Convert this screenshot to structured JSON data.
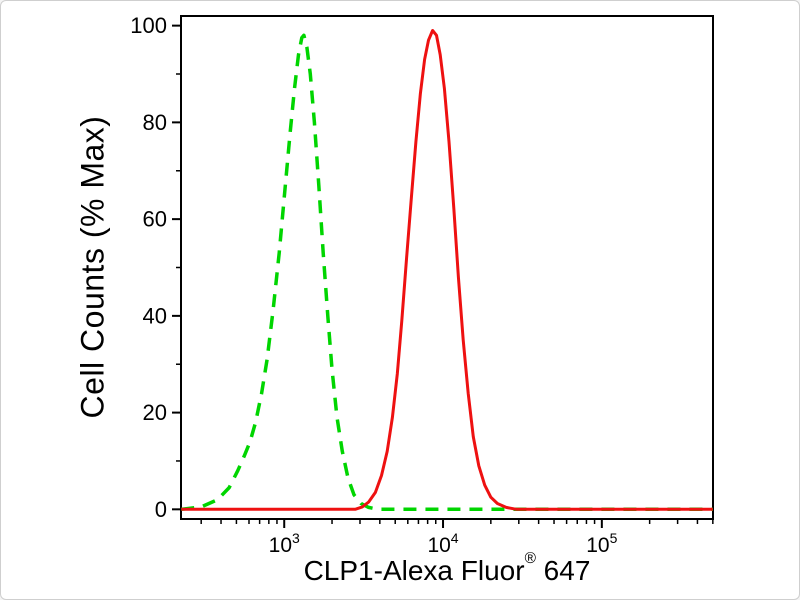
{
  "chart_data": {
    "type": "line",
    "title": "",
    "ylabel": "Cell Counts (% Max)",
    "xlabel_parts": {
      "prefix": "CLP1-Alexa Fluor",
      "registered": "®",
      "suffix": " 647"
    },
    "x_scale": "log10",
    "x_domain_log": [
      2.35,
      5.7
    ],
    "y_domain": [
      -2,
      102
    ],
    "y_ticks": [
      0,
      20,
      40,
      60,
      80,
      100
    ],
    "y_minor_step": 10,
    "x_major_tick_exponents": [
      3,
      4,
      5
    ],
    "grid": false,
    "legend": "none",
    "axis_color": "#000000",
    "series": [
      {
        "key": "control-curve",
        "name": "negative control (dashed green)",
        "color": "#00d500",
        "dash": [
          13,
          9
        ],
        "width": 3.5,
        "peak": {
          "x": 1300,
          "y": 98
        },
        "points": [
          [
            225,
            0
          ],
          [
            300,
            0.5
          ],
          [
            380,
            2
          ],
          [
            450,
            4.5
          ],
          [
            510,
            8
          ],
          [
            560,
            11
          ],
          [
            610,
            14
          ],
          [
            660,
            18
          ],
          [
            720,
            24
          ],
          [
            780,
            31
          ],
          [
            850,
            41
          ],
          [
            930,
            53
          ],
          [
            1010,
            66
          ],
          [
            1090,
            78
          ],
          [
            1160,
            87
          ],
          [
            1230,
            94
          ],
          [
            1290,
            97.5
          ],
          [
            1330,
            98
          ],
          [
            1390,
            95.5
          ],
          [
            1460,
            90
          ],
          [
            1550,
            80
          ],
          [
            1650,
            67
          ],
          [
            1760,
            53
          ],
          [
            1880,
            40
          ],
          [
            2000,
            29
          ],
          [
            2150,
            19
          ],
          [
            2320,
            12
          ],
          [
            2520,
            6.5
          ],
          [
            2750,
            3
          ],
          [
            3050,
            1.2
          ],
          [
            3400,
            0.4
          ],
          [
            3900,
            0
          ],
          [
            500000,
            0
          ]
        ]
      },
      {
        "key": "stained-curve",
        "name": "CLP1-Alexa Fluor 647 stained (solid red)",
        "color": "#ee1111",
        "dash": null,
        "width": 3,
        "peak": {
          "x": 8600,
          "y": 99
        },
        "points": [
          [
            225,
            0
          ],
          [
            2800,
            0
          ],
          [
            3100,
            0.5
          ],
          [
            3400,
            1.5
          ],
          [
            3750,
            3.5
          ],
          [
            4100,
            7
          ],
          [
            4450,
            12
          ],
          [
            4800,
            19
          ],
          [
            5150,
            28
          ],
          [
            5500,
            39
          ],
          [
            5900,
            52
          ],
          [
            6300,
            64
          ],
          [
            6750,
            76
          ],
          [
            7200,
            86
          ],
          [
            7650,
            93
          ],
          [
            8100,
            97
          ],
          [
            8600,
            99
          ],
          [
            9100,
            98
          ],
          [
            9600,
            94
          ],
          [
            10200,
            87
          ],
          [
            10900,
            76
          ],
          [
            11700,
            62
          ],
          [
            12500,
            48
          ],
          [
            13400,
            35
          ],
          [
            14400,
            24
          ],
          [
            15500,
            15
          ],
          [
            16800,
            9
          ],
          [
            18300,
            5
          ],
          [
            20000,
            2.5
          ],
          [
            22000,
            1.2
          ],
          [
            25000,
            0.4
          ],
          [
            29000,
            0
          ],
          [
            500000,
            0
          ]
        ]
      }
    ]
  }
}
